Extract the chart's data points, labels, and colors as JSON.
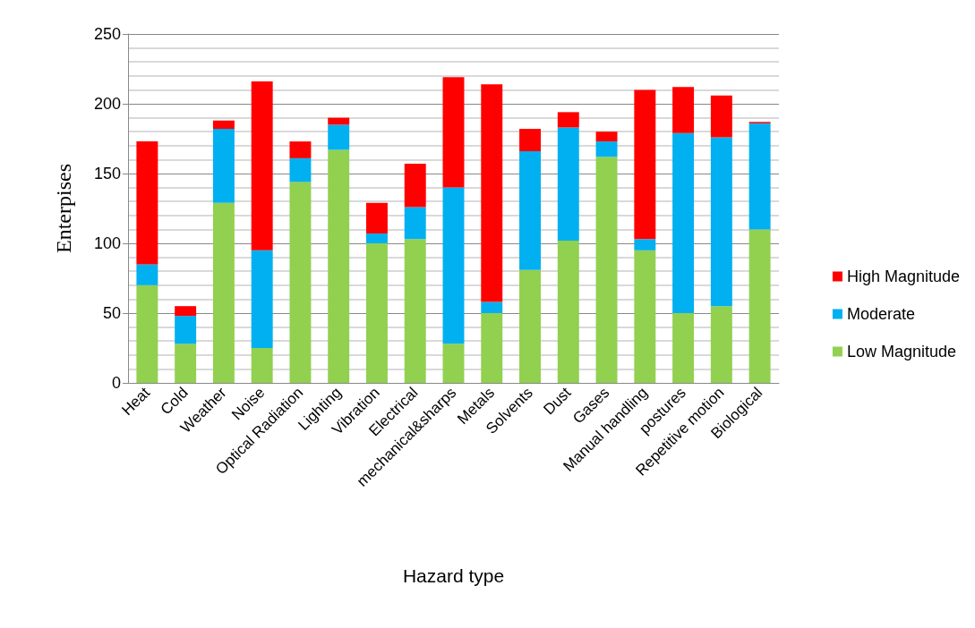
{
  "chart_data": {
    "type": "bar",
    "stacked": true,
    "xlabel": "Hazard type",
    "ylabel": "Enterpises",
    "categories": [
      "Heat",
      "Cold",
      "Weather",
      "Noise",
      "Optical Radiation",
      "Lighting",
      "Vibration",
      "Electrical",
      "mechanical&sharps",
      "Metals",
      "Solvents",
      "Dust",
      "Gases",
      "Manual handling",
      "postures",
      "Repetitive motion",
      "Biological"
    ],
    "series": [
      {
        "name": "Low Magnitude",
        "color": "#92d050",
        "values": [
          70,
          28,
          129,
          25,
          144,
          167,
          100,
          103,
          28,
          50,
          81,
          102,
          162,
          95,
          50,
          55,
          110
        ]
      },
      {
        "name": "Moderate",
        "color": "#00b0f0",
        "values": [
          15,
          20,
          53,
          70,
          17,
          18,
          7,
          23,
          112,
          8,
          85,
          81,
          11,
          8,
          129,
          121,
          76
        ]
      },
      {
        "name": "High Magnitude",
        "color": "#ff0000",
        "values": [
          88,
          7,
          6,
          121,
          12,
          5,
          22,
          31,
          79,
          156,
          16,
          11,
          7,
          107,
          33,
          30,
          1
        ]
      }
    ],
    "ylim": [
      0,
      250
    ],
    "yticks": [
      0,
      50,
      100,
      150,
      200,
      250
    ],
    "grid": "y",
    "legend": "right"
  }
}
